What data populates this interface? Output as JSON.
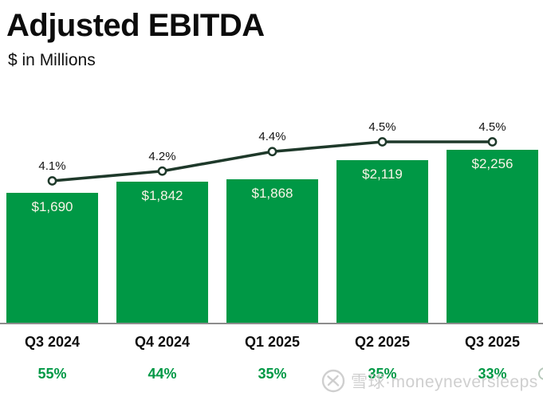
{
  "header": {
    "title": "Adjusted EBITDA",
    "subtitle": "$ in Millions"
  },
  "chart_data": {
    "type": "bar",
    "title": "Adjusted EBITDA",
    "ylabel": "$ in Millions",
    "categories": [
      "Q3 2024",
      "Q4 2024",
      "Q1 2025",
      "Q2 2025",
      "Q3 2025"
    ],
    "bar_values": [
      1690,
      1842,
      1868,
      2119,
      2256
    ],
    "bar_labels": [
      "$1,690",
      "$1,842",
      "$1,868",
      "$2,119",
      "$2,256"
    ],
    "line_values": [
      4.1,
      4.2,
      4.4,
      4.5,
      4.5
    ],
    "line_labels": [
      "4.1%",
      "4.2%",
      "4.4%",
      "4.5%",
      "4.5%"
    ],
    "bottom_percent_labels": [
      "55%",
      "44%",
      "35%",
      "35%",
      "33%"
    ],
    "ylim": [
      0,
      2256
    ],
    "grid": false,
    "legend": false
  },
  "colors": {
    "bar_green": "#009845",
    "line_dark_green": "#1e392a",
    "bar_label_cream": "#f9f4e7",
    "growth_green": "#009845",
    "axis_gray": "#8d8d8d",
    "text_black": "#0c0c0c",
    "watermark_gray": "#cbcbcb"
  },
  "watermark": {
    "logo": "xueqiu-snowball-logo",
    "text": "雪球·moneyneversleeps"
  }
}
